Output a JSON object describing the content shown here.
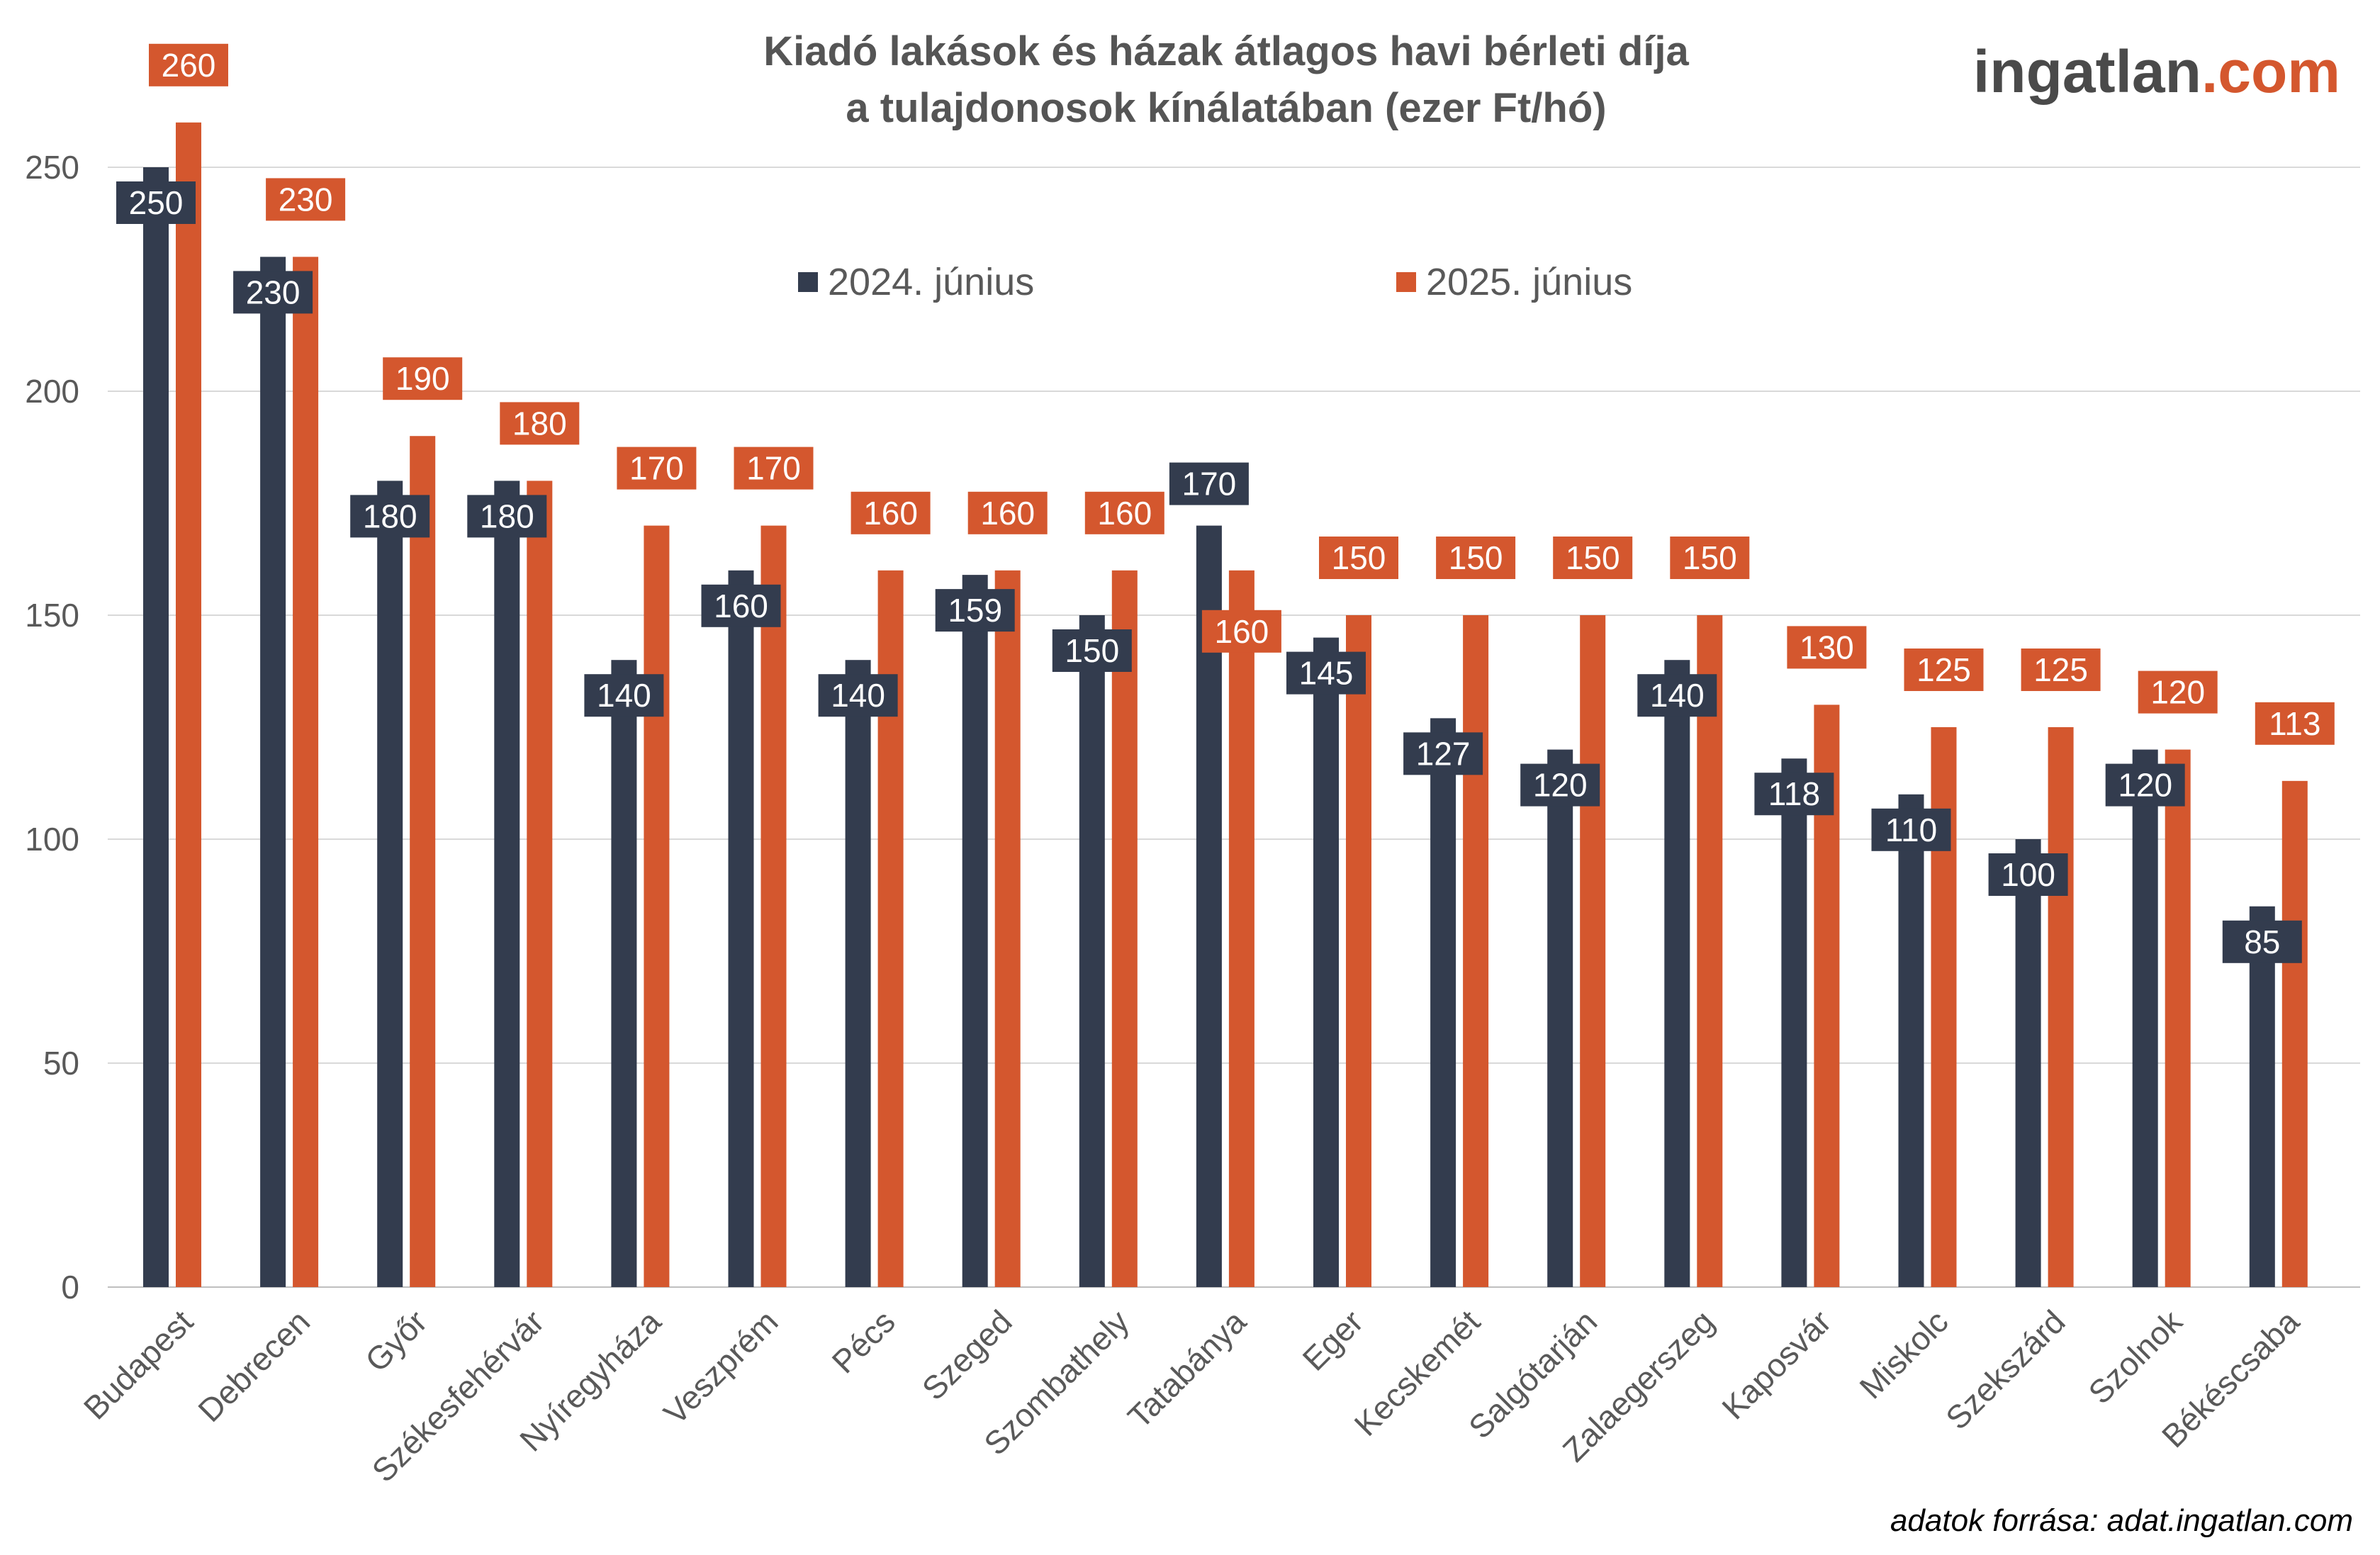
{
  "logo": {
    "main": "ingatlan",
    "dot": ".",
    "accent": "com"
  },
  "source_note": "adatok forrása: adat.ingatlan.com",
  "colors": {
    "series_2024": "#333c4e",
    "series_2025": "#d4572e",
    "grid": "#d9d9d9"
  },
  "chart_data": {
    "type": "bar",
    "title": [
      "Kiadó lakások és házak átlagos havi bérleti díja",
      "a tulajdonosok kínálatában (ezer Ft/hó)"
    ],
    "xlabel": "",
    "ylabel": "",
    "ylim": [
      0,
      260
    ],
    "yticks": [
      0,
      50,
      100,
      150,
      200,
      250
    ],
    "grid": true,
    "legend_position": "top-center",
    "categories": [
      "Budapest",
      "Debrecen",
      "Győr",
      "Székesfehérvár",
      "Nyíregyháza",
      "Veszprém",
      "Pécs",
      "Szeged",
      "Szombathely",
      "Tatabánya",
      "Eger",
      "Kecskemét",
      "Salgótarján",
      "Zalaegerszeg",
      "Kaposvár",
      "Miskolc",
      "Szekszárd",
      "Szolnok",
      "Békéscsaba"
    ],
    "series": [
      {
        "name": "2024. június",
        "values": [
          250,
          230,
          180,
          180,
          140,
          160,
          140,
          159,
          150,
          170,
          145,
          127,
          120,
          140,
          118,
          110,
          100,
          120,
          85
        ]
      },
      {
        "name": "2025. június",
        "values": [
          260,
          230,
          190,
          180,
          170,
          170,
          160,
          160,
          160,
          160,
          150,
          150,
          150,
          150,
          130,
          125,
          125,
          120,
          113
        ]
      }
    ]
  }
}
